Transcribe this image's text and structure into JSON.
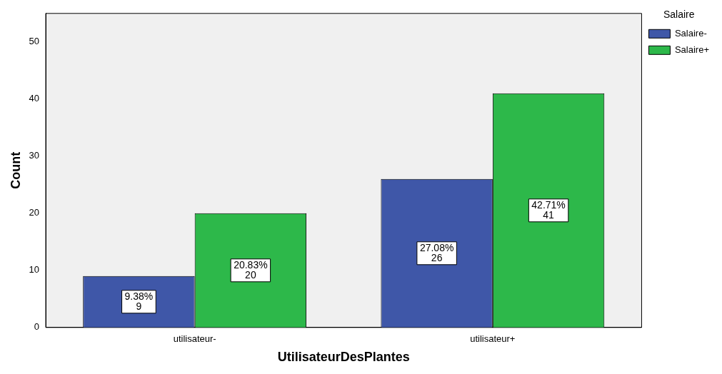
{
  "chart_data": {
    "type": "bar",
    "xlabel": "UtilisateurDesPlantes",
    "ylabel": "Count",
    "legend_title": "Salaire",
    "legend": "top right",
    "grid": false,
    "categories": [
      "utilisateur-",
      "utilisateur+"
    ],
    "ylim": [
      0,
      55
    ],
    "yticks": [
      0,
      10,
      20,
      30,
      40,
      50
    ],
    "series": [
      {
        "name": "Salaire-",
        "color": "#3f57a8",
        "values": [
          9,
          26
        ],
        "value_labels": [
          "9.38%\n9",
          "27.08%\n26"
        ]
      },
      {
        "name": "Salaire+",
        "color": "#2db84a",
        "values": [
          20,
          41
        ],
        "value_labels": [
          "20.83%\n20",
          "42.71%\n41"
        ]
      }
    ]
  }
}
